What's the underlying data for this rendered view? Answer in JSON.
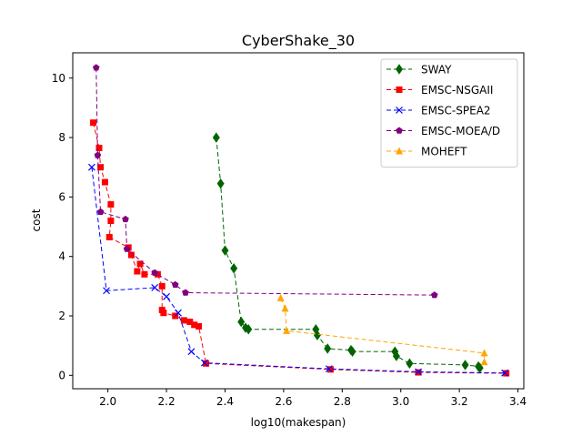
{
  "chart_data": {
    "type": "line",
    "title": "CyberShake_30",
    "xlabel": "log10(makespan)",
    "ylabel": "cost",
    "xlim": [
      1.88,
      3.42
    ],
    "ylim": [
      -0.45,
      10.85
    ],
    "xticks": [
      "2.0",
      "2.2",
      "2.4",
      "2.6",
      "2.8",
      "3.0",
      "3.2",
      "3.4"
    ],
    "yticks": [
      "0",
      "2",
      "4",
      "6",
      "8",
      "10"
    ],
    "grid": false,
    "legend_position": "top-right",
    "series": [
      {
        "name": "SWAY",
        "color": "#006400",
        "marker": "diamond",
        "points": [
          [
            2.37,
            8.0
          ],
          [
            2.385,
            6.45
          ],
          [
            2.4,
            4.2
          ],
          [
            2.43,
            3.6
          ],
          [
            2.455,
            1.8
          ],
          [
            2.47,
            1.6
          ],
          [
            2.48,
            1.55
          ],
          [
            2.71,
            1.55
          ],
          [
            2.715,
            1.35
          ],
          [
            2.75,
            0.9
          ],
          [
            2.83,
            0.85
          ],
          [
            2.835,
            0.8
          ],
          [
            2.98,
            0.8
          ],
          [
            2.985,
            0.65
          ],
          [
            3.03,
            0.4
          ],
          [
            3.22,
            0.35
          ],
          [
            3.265,
            0.3
          ],
          [
            3.27,
            0.25
          ]
        ]
      },
      {
        "name": "EMSC-NSGAII",
        "color": "#ff0000",
        "marker": "square",
        "points": [
          [
            1.95,
            8.5
          ],
          [
            1.97,
            7.65
          ],
          [
            1.975,
            7.0
          ],
          [
            1.99,
            6.5
          ],
          [
            2.01,
            5.75
          ],
          [
            2.01,
            5.2
          ],
          [
            2.005,
            4.65
          ],
          [
            2.07,
            4.3
          ],
          [
            2.08,
            4.05
          ],
          [
            2.1,
            3.5
          ],
          [
            2.11,
            3.75
          ],
          [
            2.125,
            3.4
          ],
          [
            2.17,
            3.4
          ],
          [
            2.185,
            3.0
          ],
          [
            2.185,
            2.2
          ],
          [
            2.19,
            2.1
          ],
          [
            2.23,
            2.0
          ],
          [
            2.26,
            1.85
          ],
          [
            2.28,
            1.8
          ],
          [
            2.295,
            1.7
          ],
          [
            2.31,
            1.65
          ],
          [
            2.335,
            0.4
          ],
          [
            2.76,
            0.2
          ],
          [
            3.06,
            0.1
          ],
          [
            3.36,
            0.07
          ]
        ]
      },
      {
        "name": "EMSC-SPEA2",
        "color": "#0000ff",
        "marker": "x",
        "points": [
          [
            1.945,
            7.0
          ],
          [
            1.995,
            2.85
          ],
          [
            2.16,
            2.95
          ],
          [
            2.2,
            2.65
          ],
          [
            2.24,
            2.1
          ],
          [
            2.285,
            0.8
          ],
          [
            2.33,
            0.42
          ],
          [
            2.755,
            0.22
          ],
          [
            3.06,
            0.12
          ],
          [
            3.355,
            0.08
          ]
        ]
      },
      {
        "name": "EMSC-MOEA/D",
        "color": "#800080",
        "marker": "pentagon",
        "points": [
          [
            1.96,
            10.35
          ],
          [
            1.965,
            7.4
          ],
          [
            1.975,
            5.5
          ],
          [
            2.06,
            5.25
          ],
          [
            2.065,
            4.25
          ],
          [
            2.16,
            3.45
          ],
          [
            2.23,
            3.05
          ],
          [
            2.265,
            2.78
          ],
          [
            3.115,
            2.7
          ]
        ]
      },
      {
        "name": "MOHEFT",
        "color": "#ffa500",
        "marker": "triangle",
        "points": [
          [
            2.59,
            2.6
          ],
          [
            2.605,
            2.25
          ],
          [
            2.61,
            1.5
          ],
          [
            3.285,
            0.75
          ],
          [
            3.285,
            0.45
          ]
        ]
      }
    ]
  }
}
